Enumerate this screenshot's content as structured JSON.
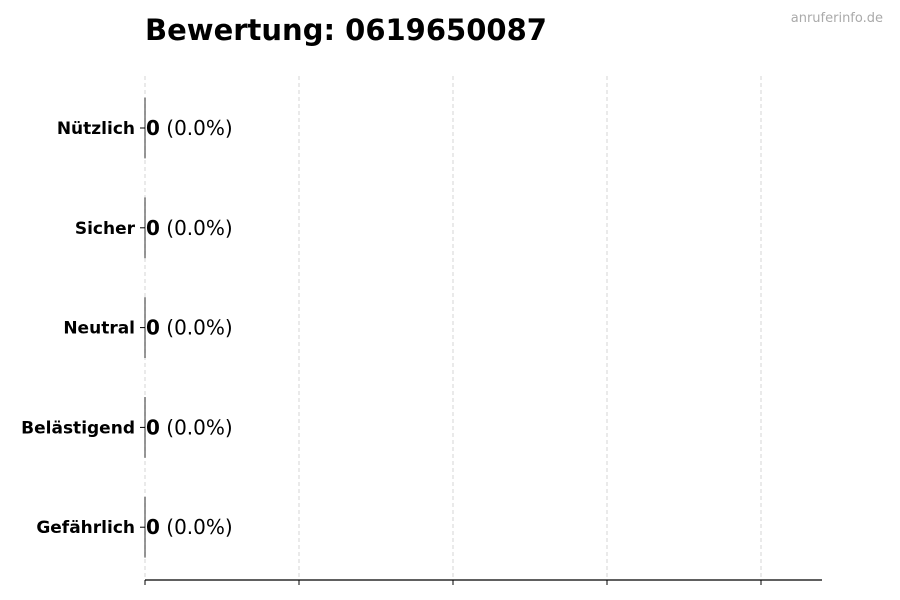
{
  "watermark": "anruferinfo.de",
  "chart_data": {
    "type": "bar",
    "orientation": "horizontal",
    "title": "Bewertung: 0619650087",
    "categories": [
      "Nützlich",
      "Sicher",
      "Neutral",
      "Belästigend",
      "Gefährlich"
    ],
    "values": [
      0,
      0,
      0,
      0,
      0
    ],
    "value_labels": [
      "0",
      "0",
      "0",
      "0",
      "0"
    ],
    "percent_labels": [
      "(0.0%)",
      "(0.0%)",
      "(0.0%)",
      "(0.0%)",
      "(0.0%)"
    ],
    "xlabel": "",
    "ylabel": "",
    "grid": "x-dashed",
    "x_tick_labels_visible": false
  }
}
